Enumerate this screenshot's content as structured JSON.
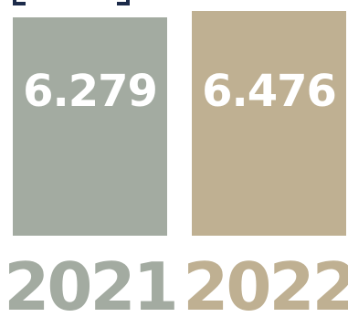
{
  "chart_data": {
    "type": "bar",
    "categories": [
      "2021",
      "2022"
    ],
    "values": [
      6.279,
      6.476
    ],
    "value_labels": [
      "6.279",
      "6.476"
    ],
    "colors": [
      "#a3aba1",
      "#bfb092"
    ],
    "ylim": [
      0,
      6.63
    ],
    "grid": false,
    "legend": "none",
    "title": "",
    "xlabel": "",
    "ylabel": ""
  }
}
